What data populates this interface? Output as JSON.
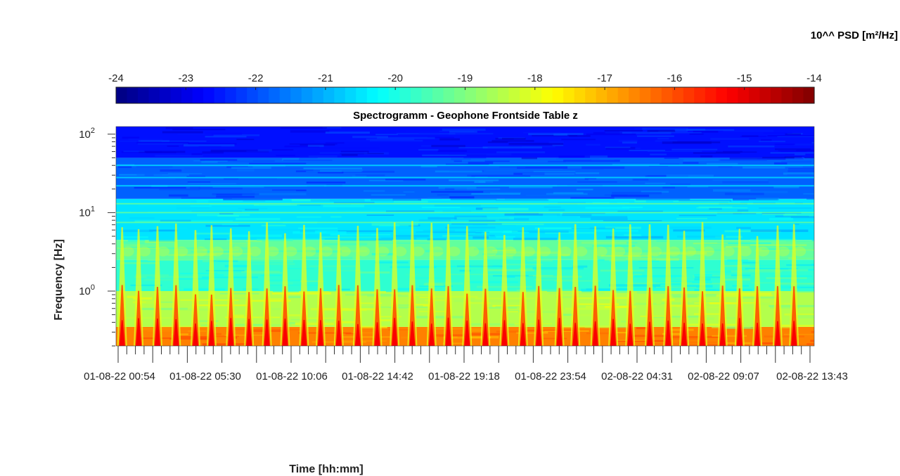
{
  "chart_data": {
    "type": "heatmap",
    "title": "Spectrogramm - Geophone Frontside Table z",
    "xlabel": "Time [hh:mm]",
    "ylabel": "Frequency [Hz]",
    "yscale": "log",
    "ylim": [
      0.2,
      125
    ],
    "y_ticks": [
      {
        "value": 1,
        "base": "10",
        "exp": "0"
      },
      {
        "value": 10,
        "base": "10",
        "exp": "1"
      },
      {
        "value": 100,
        "base": "10",
        "exp": "2"
      }
    ],
    "x_tick_labels": [
      "01-08-22  00:54",
      "01-08-22  05:30",
      "01-08-22  10:06",
      "01-08-22  14:42",
      "01-08-22  19:18",
      "01-08-22  23:54",
      "02-08-22  04:31",
      "02-08-22  09:07",
      "02-08-22  13:43"
    ],
    "colorbar": {
      "label": "10^^ PSD [m²/Hz]",
      "range": [
        -24,
        -14
      ],
      "ticks": [
        -24,
        -23,
        -22,
        -21,
        -20,
        -19,
        -18,
        -17,
        -16,
        -15,
        -14
      ],
      "colormap": "jet",
      "location": "top"
    },
    "spectrogram_bands": [
      {
        "f_min": 0.2,
        "f_max": 0.35,
        "log_psd": -16.5
      },
      {
        "f_min": 0.35,
        "f_max": 1.0,
        "log_psd": -18.5
      },
      {
        "f_min": 1.0,
        "f_max": 2.5,
        "log_psd": -19.8
      },
      {
        "f_min": 2.5,
        "f_max": 4.5,
        "log_psd": -19.3
      },
      {
        "f_min": 4.5,
        "f_max": 15,
        "log_psd": -20.5
      },
      {
        "f_min": 15,
        "f_max": 50,
        "log_psd": -21.8
      },
      {
        "f_min": 50,
        "f_max": 125,
        "log_psd": -22.6
      }
    ],
    "narrowband_lines_hz": [
      7.5,
      10,
      13,
      22,
      28,
      40
    ],
    "periodic_event_count": 38,
    "event_peak_log_psd": -15.2
  }
}
